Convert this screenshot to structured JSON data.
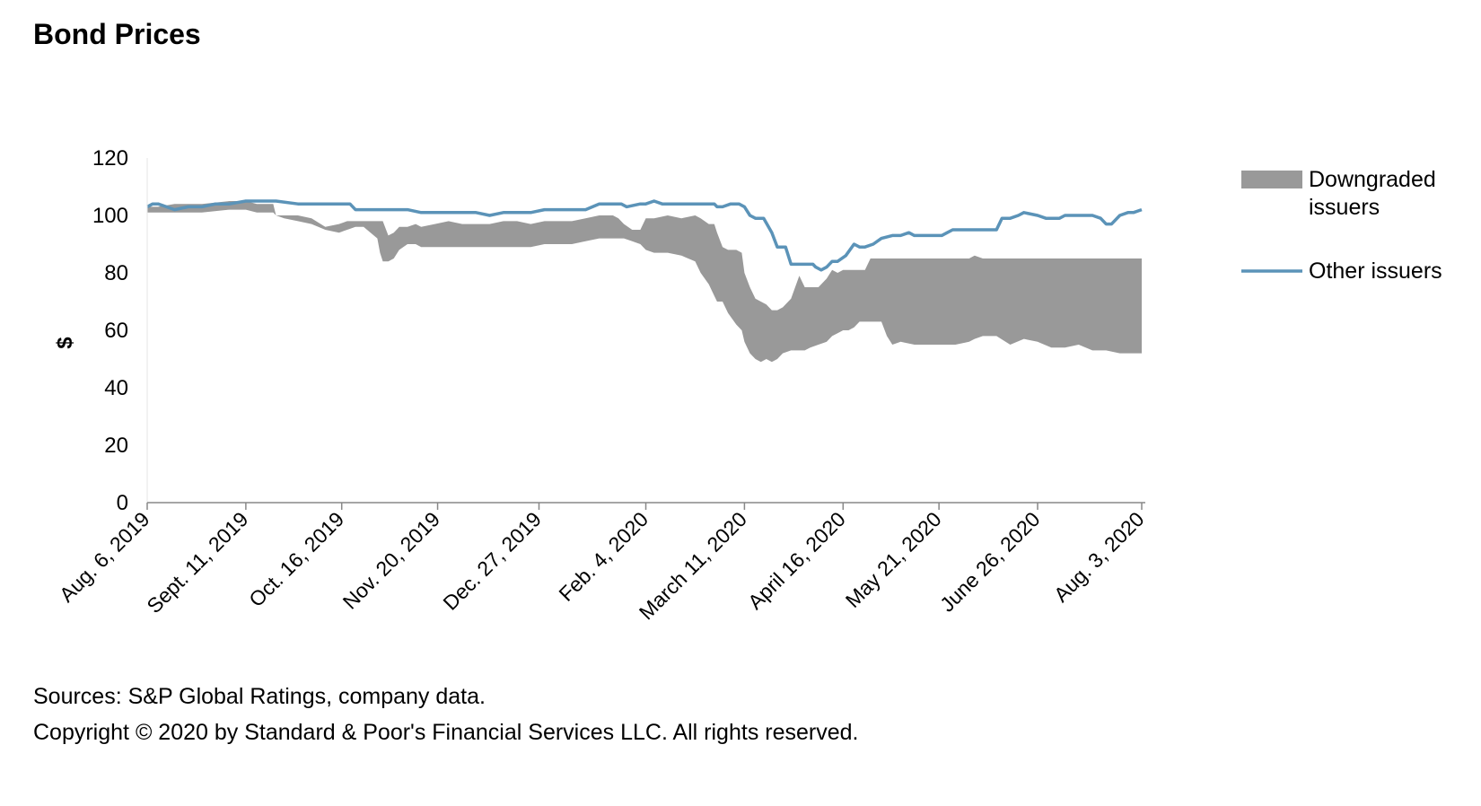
{
  "title": "Bond Prices",
  "footer": {
    "sources": "Sources: S&P Global Ratings, company data.",
    "copyright": "Copyright © 2020 by Standard & Poor's Financial Services LLC. All rights reserved."
  },
  "colors": {
    "band": "#999999",
    "line": "#5b93b8",
    "axis": "#888888"
  },
  "chart_data": {
    "type": "area",
    "title": "Bond Prices",
    "xlabel": "",
    "ylabel": "$",
    "ylim": [
      0,
      120
    ],
    "yticks": [
      0,
      20,
      40,
      60,
      80,
      100,
      120
    ],
    "xlim": [
      0,
      363
    ],
    "xticks": [
      {
        "day": 0,
        "label": "Aug. 6, 2019"
      },
      {
        "day": 36,
        "label": "Sept. 11, 2019"
      },
      {
        "day": 71,
        "label": "Oct. 16, 2019"
      },
      {
        "day": 106,
        "label": "Nov. 20, 2019"
      },
      {
        "day": 143,
        "label": "Dec. 27, 2019"
      },
      {
        "day": 182,
        "label": "Feb. 4, 2020"
      },
      {
        "day": 218,
        "label": "March 11, 2020"
      },
      {
        "day": 254,
        "label": "April 16, 2020"
      },
      {
        "day": 289,
        "label": "May 21, 2020"
      },
      {
        "day": 325,
        "label": "June 26, 2020"
      },
      {
        "day": 363,
        "label": "Aug. 3, 2020"
      }
    ],
    "legend": [
      {
        "key": "band",
        "label_lines": [
          "Downgraded",
          "issuers"
        ]
      },
      {
        "key": "line",
        "label_lines": [
          "Other issuers"
        ]
      }
    ],
    "series": [
      {
        "name": "Downgraded issuers",
        "kind": "band",
        "x": [
          0,
          4,
          10,
          20,
          30,
          36,
          40,
          46,
          47,
          50,
          55,
          60,
          65,
          70,
          73,
          76,
          79,
          84,
          85,
          86,
          88,
          90,
          92,
          95,
          98,
          100,
          105,
          110,
          115,
          120,
          125,
          130,
          135,
          140,
          145,
          150,
          155,
          160,
          165,
          170,
          172,
          174,
          177,
          180,
          182,
          185,
          190,
          195,
          200,
          202,
          205,
          207,
          208,
          210,
          212,
          215,
          217,
          218,
          220,
          222,
          224,
          226,
          228,
          230,
          232,
          235,
          238,
          240,
          242,
          245,
          248,
          250,
          252,
          254,
          256,
          258,
          260,
          262,
          264,
          266,
          268,
          270,
          272,
          275,
          280,
          285,
          290,
          295,
          300,
          302,
          305,
          310,
          315,
          320,
          325,
          330,
          335,
          340,
          345,
          350,
          355,
          360,
          363
        ],
        "upper": [
          103,
          103,
          104,
          104,
          105,
          105,
          104,
          104,
          100,
          100,
          100,
          99,
          96,
          97,
          98,
          98,
          98,
          98,
          98,
          98,
          93,
          94,
          96,
          96,
          97,
          96,
          97,
          98,
          97,
          97,
          97,
          98,
          98,
          97,
          98,
          98,
          98,
          99,
          100,
          100,
          99,
          97,
          95,
          95,
          99,
          99,
          100,
          99,
          100,
          99,
          97,
          97,
          94,
          89,
          88,
          88,
          87,
          80,
          75,
          71,
          70,
          69,
          67,
          67,
          68,
          71,
          79,
          75,
          75,
          75,
          78,
          81,
          80,
          81,
          81,
          81,
          81,
          81,
          85,
          85,
          85,
          85,
          85,
          85,
          85,
          85,
          85,
          85,
          85,
          86,
          85,
          85,
          85,
          85,
          85,
          85,
          85,
          85,
          85,
          85,
          85,
          85,
          85
        ],
        "lower": [
          101,
          101,
          101,
          101,
          102,
          102,
          101,
          101,
          100,
          99,
          98,
          97,
          95,
          94,
          95,
          96,
          96,
          92,
          87,
          84,
          84,
          85,
          88,
          90,
          90,
          89,
          89,
          89,
          89,
          89,
          89,
          89,
          89,
          89,
          90,
          90,
          90,
          91,
          92,
          92,
          92,
          92,
          91,
          90,
          88,
          87,
          87,
          86,
          84,
          80,
          76,
          72,
          70,
          70,
          66,
          62,
          60,
          56,
          52,
          50,
          49,
          50,
          49,
          50,
          52,
          53,
          53,
          53,
          54,
          55,
          56,
          58,
          59,
          60,
          60,
          61,
          63,
          63,
          63,
          63,
          63,
          58,
          55,
          56,
          55,
          55,
          55,
          55,
          56,
          57,
          58,
          58,
          55,
          57,
          56,
          54,
          54,
          55,
          53,
          53,
          52,
          52,
          52
        ]
      },
      {
        "name": "Other issuers",
        "kind": "line",
        "x": [
          0,
          2,
          4,
          7,
          10,
          15,
          20,
          25,
          30,
          36,
          40,
          47,
          55,
          60,
          65,
          70,
          74,
          76,
          80,
          85,
          95,
          100,
          110,
          115,
          120,
          125,
          130,
          135,
          140,
          145,
          150,
          155,
          160,
          165,
          170,
          173,
          175,
          180,
          182,
          185,
          188,
          195,
          200,
          205,
          207,
          208,
          210,
          213,
          214,
          216,
          218,
          220,
          222,
          223,
          225,
          228,
          230,
          233,
          235,
          237,
          240,
          242,
          243,
          244,
          246,
          248,
          250,
          252,
          255,
          258,
          260,
          262,
          265,
          268,
          272,
          275,
          278,
          280,
          285,
          290,
          292,
          294,
          298,
          300,
          305,
          310,
          312,
          315,
          318,
          320,
          325,
          328,
          330,
          333,
          335,
          340,
          345,
          348,
          350,
          352,
          355,
          358,
          360,
          363
        ],
        "values": [
          103,
          104,
          104,
          103,
          102,
          103,
          103,
          104,
          104,
          105,
          105,
          105,
          104,
          104,
          104,
          104,
          104,
          102,
          102,
          102,
          102,
          101,
          101,
          101,
          101,
          100,
          101,
          101,
          101,
          102,
          102,
          102,
          102,
          104,
          104,
          104,
          103,
          104,
          104,
          105,
          104,
          104,
          104,
          104,
          104,
          103,
          103,
          104,
          104,
          104,
          103,
          100,
          99,
          99,
          99,
          94,
          89,
          89,
          83,
          83,
          83,
          83,
          83,
          82,
          81,
          82,
          84,
          84,
          86,
          90,
          89,
          89,
          90,
          92,
          93,
          93,
          94,
          93,
          93,
          93,
          94,
          95,
          95,
          95,
          95,
          95,
          99,
          99,
          100,
          101,
          100,
          99,
          99,
          99,
          100,
          100,
          100,
          99,
          97,
          97,
          100,
          101,
          101,
          102
        ]
      }
    ]
  }
}
